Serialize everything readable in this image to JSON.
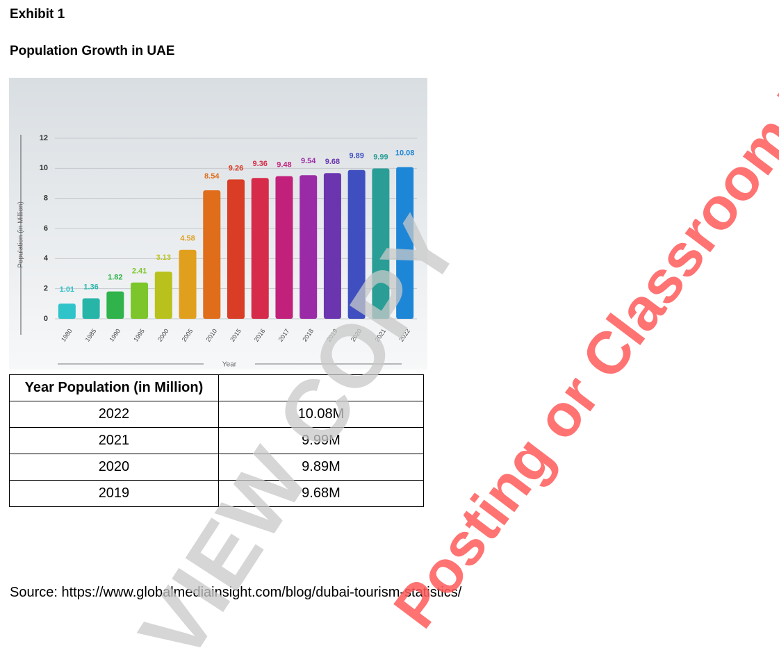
{
  "header": {
    "exhibit": "Exhibit 1",
    "title": "Population Growth in UAE"
  },
  "chart_data": {
    "type": "bar",
    "ylabel": "Population (in Million)",
    "xlabel": "Year",
    "categories": [
      "1980",
      "1985",
      "1990",
      "1995",
      "2000",
      "2005",
      "2010",
      "2015",
      "2016",
      "2017",
      "2018",
      "2019",
      "2020",
      "2021",
      "2022"
    ],
    "values": [
      1.01,
      1.36,
      1.82,
      2.41,
      3.13,
      4.58,
      8.54,
      9.26,
      9.36,
      9.48,
      9.54,
      9.68,
      9.89,
      9.99,
      10.08
    ],
    "colors": [
      "#2ec4c9",
      "#27b5a8",
      "#2fb34a",
      "#7cc62c",
      "#b9c21c",
      "#e0a01e",
      "#e06d1a",
      "#d93d26",
      "#d62b4a",
      "#c2217b",
      "#9b2aa6",
      "#6b35b0",
      "#3f4fc0",
      "#2a9e96",
      "#1e86d6"
    ],
    "ylim": [
      0,
      12
    ],
    "yticks": [
      0,
      2,
      4,
      6,
      8,
      10,
      12
    ],
    "grid": true
  },
  "table": {
    "header": [
      "Year Population (in Million)"
    ],
    "rows": [
      [
        "2022",
        "10.08M"
      ],
      [
        "2021",
        "9.99M"
      ],
      [
        "2020",
        "9.89M"
      ],
      [
        "2019",
        "9.68M"
      ]
    ]
  },
  "source": "Source: https://www.globalmediainsight.com/blog/dubai-tourism-statistics/",
  "watermark": {
    "grey": "VIEW COPY",
    "red": "Posting or Classroom Use"
  }
}
